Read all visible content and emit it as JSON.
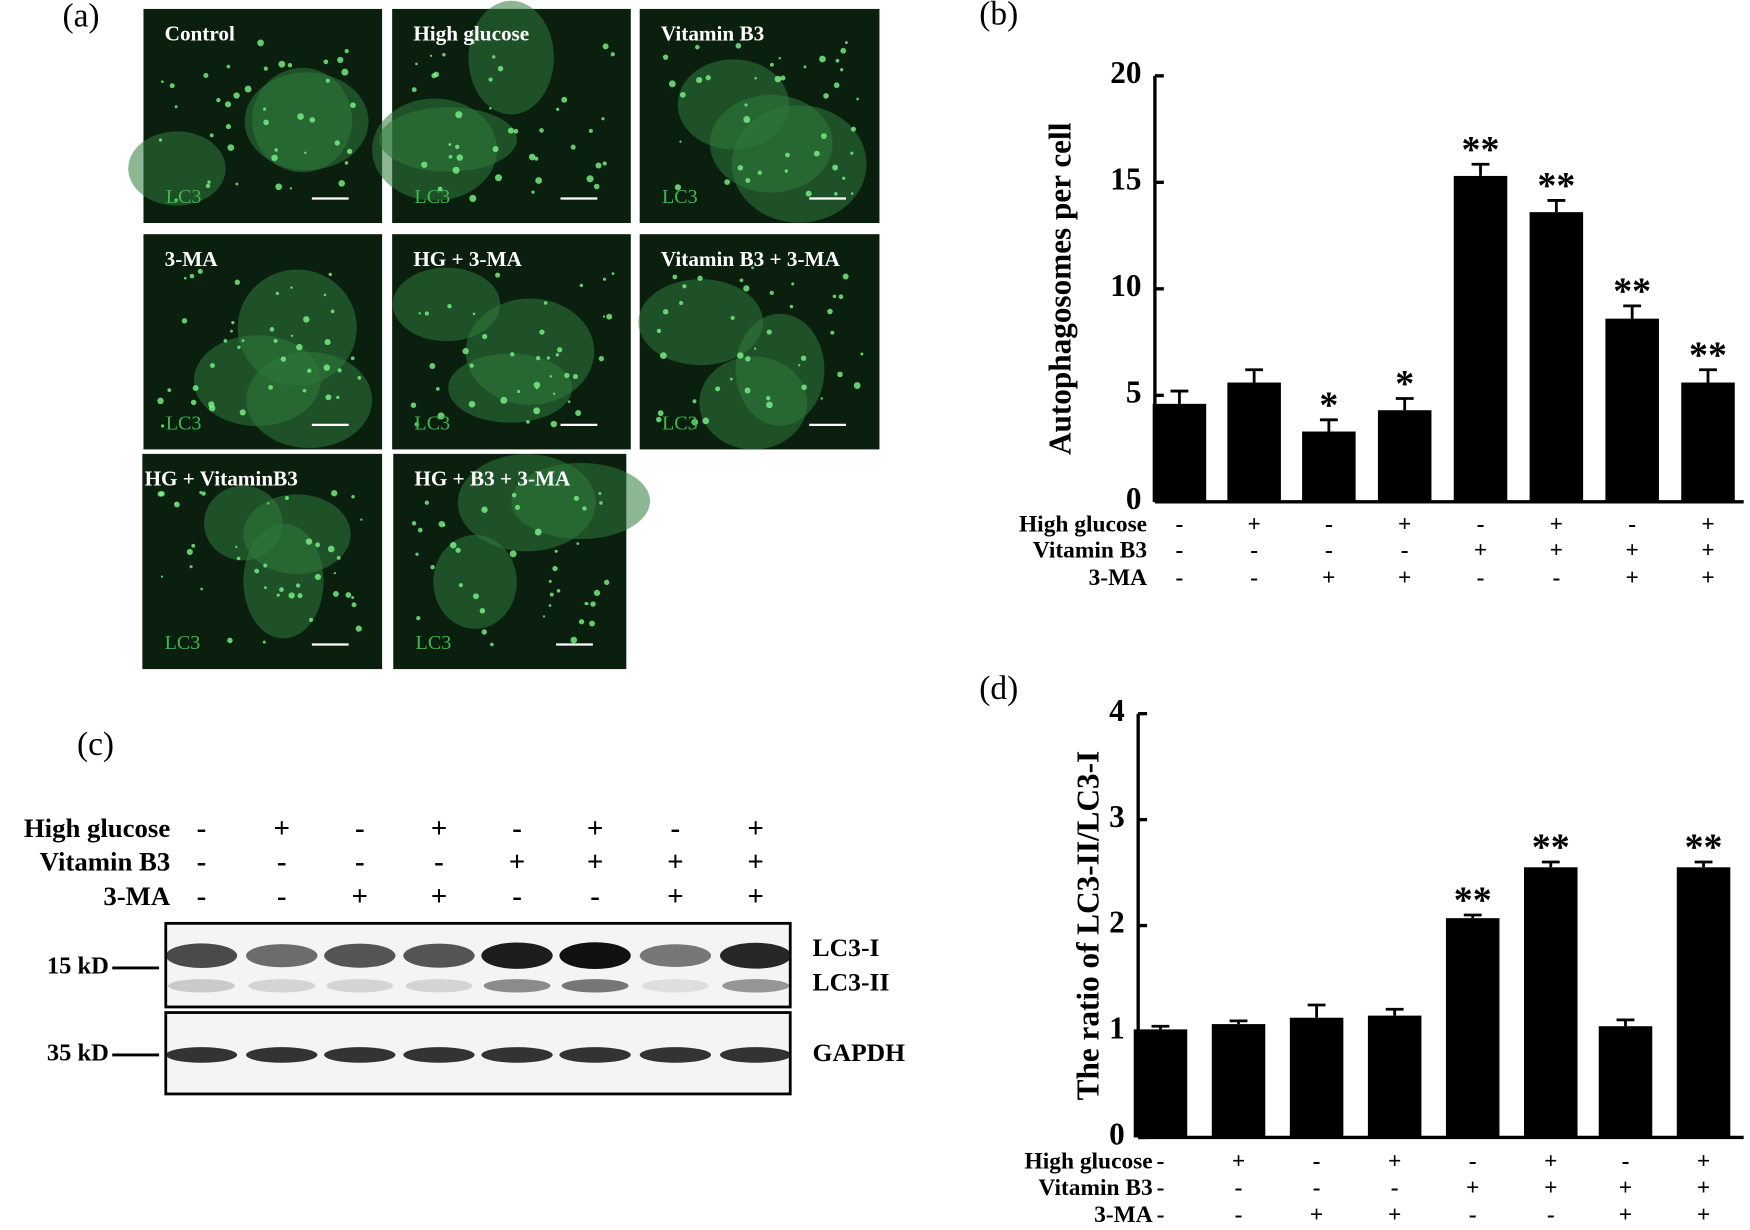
{
  "panel_a": {
    "label": "(a)",
    "images": [
      {
        "title": "Control",
        "stain": "LC3"
      },
      {
        "title": "High glucose",
        "stain": "LC3"
      },
      {
        "title": "Vitamin B3",
        "stain": "LC3"
      },
      {
        "title": "3-MA",
        "stain": "LC3"
      },
      {
        "title": "HG + 3-MA",
        "stain": "LC3"
      },
      {
        "title": "Vitamin B3 + 3-MA",
        "stain": "LC3"
      },
      {
        "title": "HG + VitaminB3",
        "stain": "LC3"
      },
      {
        "title": "HG + B3 + 3-MA",
        "stain": "LC3"
      }
    ]
  },
  "panel_c": {
    "label": "(c)",
    "treatments": [
      {
        "name": "High glucose",
        "signs": [
          "-",
          "+",
          "-",
          "+",
          "-",
          "+",
          "-",
          "+"
        ]
      },
      {
        "name": "Vitamin B3",
        "signs": [
          "-",
          "-",
          "-",
          "-",
          "+",
          "+",
          "+",
          "+"
        ]
      },
      {
        "name": "3-MA",
        "signs": [
          "-",
          "-",
          "+",
          "+",
          "-",
          "-",
          "+",
          "+"
        ]
      }
    ],
    "markers": [
      "15 kD",
      "35 kD"
    ],
    "bands": [
      "LC3-I",
      "LC3-II",
      "GAPDH"
    ]
  },
  "chart_data": [
    {
      "type": "bar",
      "panel_label": "(b)",
      "y_label": "Autophagosomes per cell",
      "color": "#000000",
      "categories": [
        null,
        null,
        null,
        null,
        null,
        null,
        null,
        null
      ],
      "values": [
        4.6,
        5.6,
        3.3,
        4.3,
        15.3,
        13.6,
        8.6,
        5.6
      ],
      "errors": [
        0.6,
        0.6,
        0.55,
        0.55,
        0.55,
        0.55,
        0.6,
        0.6
      ],
      "annotations": [
        null,
        null,
        "*",
        "*",
        "**",
        "**",
        "**",
        "**"
      ],
      "ylim": [
        0,
        20
      ],
      "yticks": [
        0,
        5,
        10,
        15,
        20
      ],
      "treatments": [
        {
          "name": "High glucose",
          "signs": [
            "-",
            "+",
            "-",
            "+",
            "-",
            "+",
            "-",
            "+"
          ]
        },
        {
          "name": "Vitamin B3",
          "signs": [
            "-",
            "-",
            "-",
            "-",
            "+",
            "+",
            "+",
            "+"
          ]
        },
        {
          "name": "3-MA",
          "signs": [
            "-",
            "-",
            "+",
            "+",
            "-",
            "-",
            "+",
            "+"
          ]
        }
      ]
    },
    {
      "type": "bar",
      "panel_label": "(d)",
      "y_label": "The ratio of LC3-II/LC3-I",
      "color": "#000000",
      "categories": [
        null,
        null,
        null,
        null,
        null,
        null,
        null,
        null
      ],
      "values": [
        1.02,
        1.07,
        1.13,
        1.15,
        2.07,
        2.55,
        1.05,
        2.55
      ],
      "errors": [
        0.03,
        0.03,
        0.12,
        0.06,
        0.03,
        0.05,
        0.06,
        0.05
      ],
      "annotations": [
        null,
        null,
        null,
        null,
        "**",
        "**",
        null,
        "**"
      ],
      "ylim": [
        0,
        4
      ],
      "yticks": [
        0,
        1,
        2,
        3,
        4
      ],
      "treatments": [
        {
          "name": "High glucose",
          "signs": [
            "-",
            "+",
            "-",
            "+",
            "-",
            "+",
            "-",
            "+"
          ]
        },
        {
          "name": "Vitamin B3",
          "signs": [
            "-",
            "-",
            "-",
            "-",
            "+",
            "+",
            "+",
            "+"
          ]
        },
        {
          "name": "3-MA",
          "signs": [
            "-",
            "-",
            "+",
            "+",
            "-",
            "-",
            "+",
            "+"
          ]
        }
      ]
    }
  ]
}
